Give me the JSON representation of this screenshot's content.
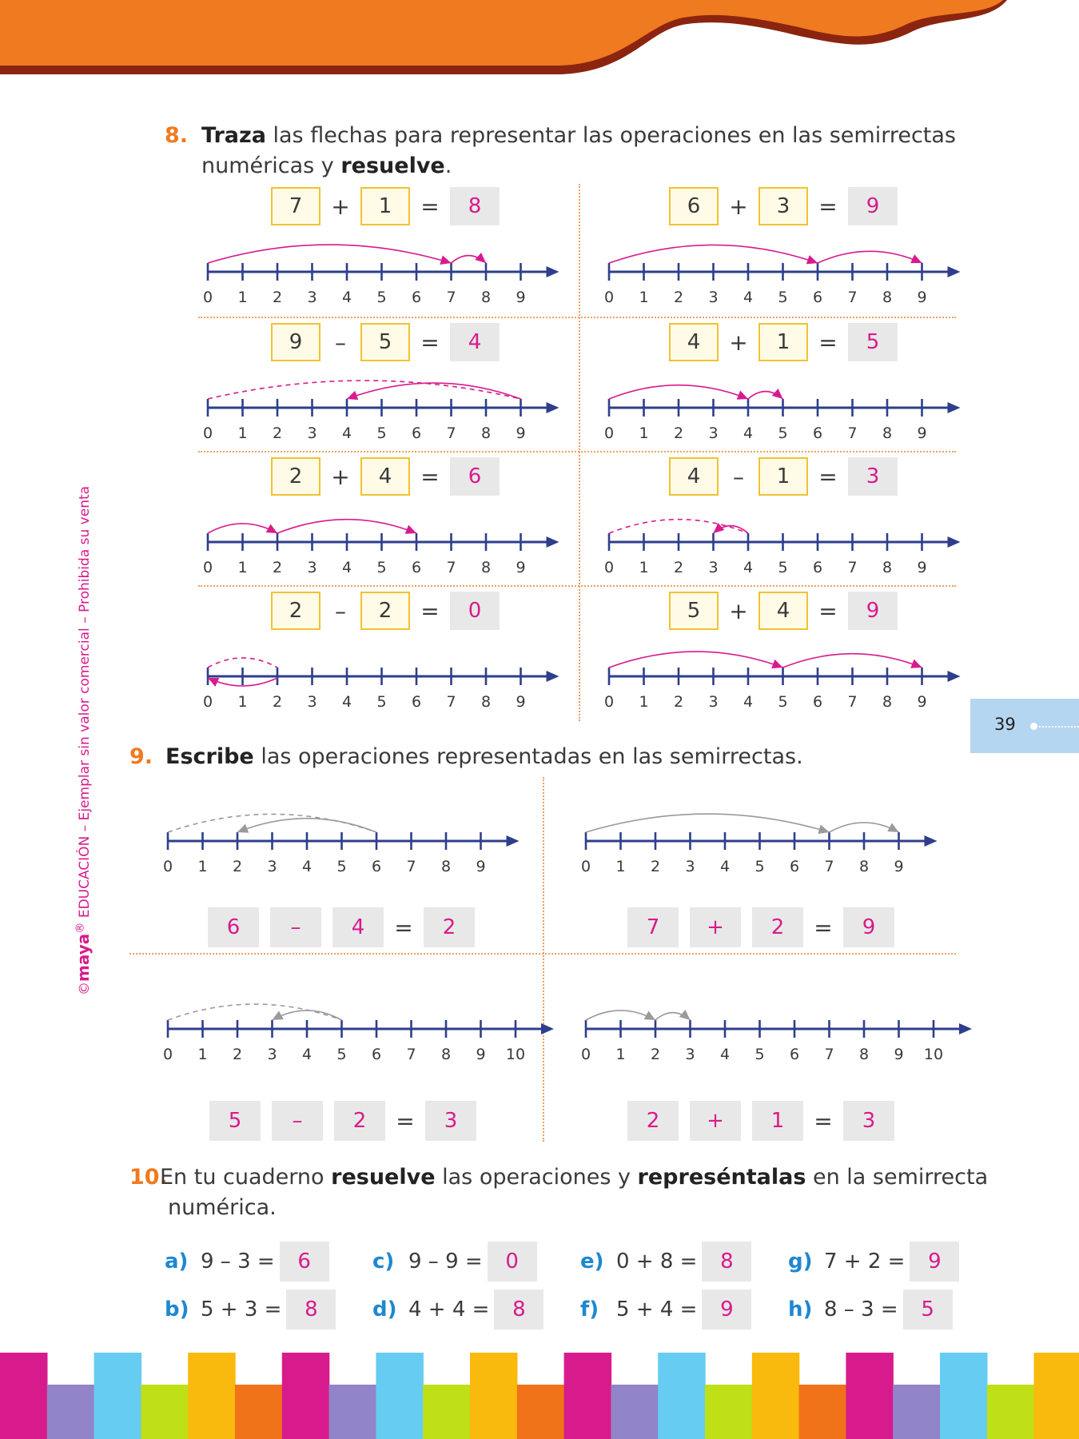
{
  "page": {
    "page_number": "39",
    "side_note": {
      "copyright": "©",
      "brand": "maya",
      "reg": "®",
      "text": " EDUCACIÓN – Ejemplar sin valor comercial – Prohibida su venta"
    },
    "colors": {
      "orange": "#f07a1f",
      "dark_red": "#8b2510",
      "magenta": "#d81b8c",
      "navy": "#2e3e8c",
      "blue_label": "#1e88d0",
      "page_tab": "#b5d6f0"
    },
    "footer_bars": [
      "#d81b8c",
      "#9284c8",
      "#66ccf2",
      "#bfdf17",
      "#f9b90d",
      "#f07219"
    ]
  },
  "q8": {
    "number": "8.",
    "bold1": "Traza",
    "text1": " las flechas para representar las operaciones en las semirrectas",
    "text2": "numéricas y ",
    "bold2": "resuelve",
    "text3": ".",
    "items": [
      {
        "a": "7",
        "op": "+",
        "b": "1",
        "eq": "=",
        "result": "8",
        "ticks": [
          "0",
          "1",
          "2",
          "3",
          "4",
          "5",
          "6",
          "7",
          "8",
          "9"
        ],
        "arrows": [
          {
            "from": 0,
            "to": 7,
            "style": "solid"
          },
          {
            "from": 7,
            "to": 8,
            "style": "solid"
          }
        ]
      },
      {
        "a": "6",
        "op": "+",
        "b": "3",
        "eq": "=",
        "result": "9",
        "ticks": [
          "0",
          "1",
          "2",
          "3",
          "4",
          "5",
          "6",
          "7",
          "8",
          "9"
        ],
        "arrows": [
          {
            "from": 0,
            "to": 6,
            "style": "solid"
          },
          {
            "from": 6,
            "to": 9,
            "style": "solid"
          }
        ]
      },
      {
        "a": "9",
        "op": "–",
        "b": "5",
        "eq": "=",
        "result": "4",
        "ticks": [
          "0",
          "1",
          "2",
          "3",
          "4",
          "5",
          "6",
          "7",
          "8",
          "9"
        ],
        "arrows": [
          {
            "from": 0,
            "to": 9,
            "style": "dashed"
          },
          {
            "from": 9,
            "to": 4,
            "style": "solid"
          }
        ]
      },
      {
        "a": "4",
        "op": "+",
        "b": "1",
        "eq": "=",
        "result": "5",
        "ticks": [
          "0",
          "1",
          "2",
          "3",
          "4",
          "5",
          "6",
          "7",
          "8",
          "9"
        ],
        "arrows": [
          {
            "from": 0,
            "to": 4,
            "style": "solid"
          },
          {
            "from": 4,
            "to": 5,
            "style": "solid"
          }
        ]
      },
      {
        "a": "2",
        "op": "+",
        "b": "4",
        "eq": "=",
        "result": "6",
        "ticks": [
          "0",
          "1",
          "2",
          "3",
          "4",
          "5",
          "6",
          "7",
          "8",
          "9"
        ],
        "arrows": [
          {
            "from": 0,
            "to": 2,
            "style": "solid"
          },
          {
            "from": 2,
            "to": 6,
            "style": "solid"
          }
        ]
      },
      {
        "a": "4",
        "op": "–",
        "b": "1",
        "eq": "=",
        "result": "3",
        "ticks": [
          "0",
          "1",
          "2",
          "3",
          "4",
          "5",
          "6",
          "7",
          "8",
          "9"
        ],
        "arrows": [
          {
            "from": 0,
            "to": 4,
            "style": "dashed"
          },
          {
            "from": 4,
            "to": 3,
            "style": "solid"
          }
        ]
      },
      {
        "a": "2",
        "op": "–",
        "b": "2",
        "eq": "=",
        "result": "0",
        "ticks": [
          "0",
          "1",
          "2",
          "3",
          "4",
          "5",
          "6",
          "7",
          "8",
          "9"
        ],
        "arrows": [
          {
            "from": 0,
            "to": 2,
            "style": "dashed"
          },
          {
            "from": 2,
            "to": 0,
            "style": "solid-below"
          }
        ]
      },
      {
        "a": "5",
        "op": "+",
        "b": "4",
        "eq": "=",
        "result": "9",
        "ticks": [
          "0",
          "1",
          "2",
          "3",
          "4",
          "5",
          "6",
          "7",
          "8",
          "9"
        ],
        "arrows": [
          {
            "from": 0,
            "to": 5,
            "style": "solid"
          },
          {
            "from": 5,
            "to": 9,
            "style": "solid"
          }
        ]
      }
    ]
  },
  "q9": {
    "number": "9.",
    "bold1": "Escribe",
    "text1": " las operaciones representadas en las semirrectas.",
    "items": [
      {
        "a": "6",
        "op": "–",
        "b": "4",
        "eq": "=",
        "result": "2",
        "ticks": [
          "0",
          "1",
          "2",
          "3",
          "4",
          "5",
          "6",
          "7",
          "8",
          "9"
        ],
        "arrows": [
          {
            "from": 0,
            "to": 6,
            "style": "dashed"
          },
          {
            "from": 6,
            "to": 2,
            "style": "solid"
          }
        ]
      },
      {
        "a": "7",
        "op": "+",
        "b": "2",
        "eq": "=",
        "result": "9",
        "ticks": [
          "0",
          "1",
          "2",
          "3",
          "4",
          "5",
          "6",
          "7",
          "8",
          "9"
        ],
        "arrows": [
          {
            "from": 0,
            "to": 7,
            "style": "solid"
          },
          {
            "from": 7,
            "to": 9,
            "style": "solid"
          }
        ]
      },
      {
        "a": "5",
        "op": "–",
        "b": "2",
        "eq": "=",
        "result": "3",
        "ticks": [
          "0",
          "1",
          "2",
          "3",
          "4",
          "5",
          "6",
          "7",
          "8",
          "9",
          "10"
        ],
        "arrows": [
          {
            "from": 0,
            "to": 5,
            "style": "dashed"
          },
          {
            "from": 5,
            "to": 3,
            "style": "solid"
          }
        ]
      },
      {
        "a": "2",
        "op": "+",
        "b": "1",
        "eq": "=",
        "result": "3",
        "ticks": [
          "0",
          "1",
          "2",
          "3",
          "4",
          "5",
          "6",
          "7",
          "8",
          "9",
          "10"
        ],
        "arrows": [
          {
            "from": 0,
            "to": 2,
            "style": "solid"
          },
          {
            "from": 2,
            "to": 3,
            "style": "solid"
          }
        ]
      }
    ]
  },
  "q10": {
    "number": "10.",
    "text1": " En tu cuaderno ",
    "bold1": "resuelve",
    "text2": " las operaciones y ",
    "bold2": "represéntalas",
    "text3": " en la semirrecta",
    "text4": "numérica.",
    "items": [
      {
        "label": "a)",
        "expr": "9 – 3 =",
        "answer": "6"
      },
      {
        "label": "b)",
        "expr": "5 + 3 =",
        "answer": "8"
      },
      {
        "label": "c)",
        "expr": "9 – 9 =",
        "answer": "0"
      },
      {
        "label": "d)",
        "expr": "4 + 4 =",
        "answer": "8"
      },
      {
        "label": "e)",
        "expr": "0 + 8 =",
        "answer": "8"
      },
      {
        "label": "f)",
        "expr": "5 + 4 =",
        "answer": "9"
      },
      {
        "label": "g)",
        "expr": "7 + 2 =",
        "answer": "9"
      },
      {
        "label": "h)",
        "expr": "8 – 3 =",
        "answer": "5"
      }
    ]
  }
}
